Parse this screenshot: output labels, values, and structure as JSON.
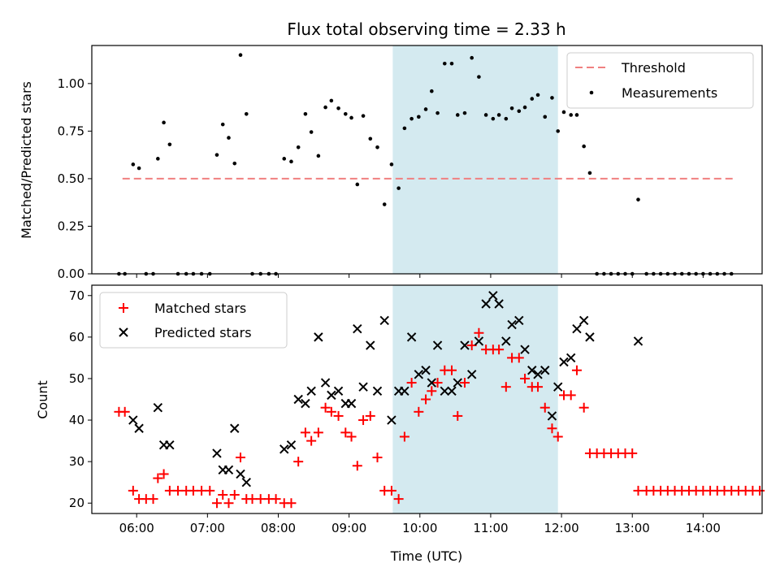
{
  "chart_data": [
    {
      "type": "scatter",
      "title": "Flux total observing time = 2.33 h",
      "ylabel": "Matched/Predicted stars",
      "xlim": [
        "05:22",
        "14:50"
      ],
      "ylim": [
        0,
        1.2
      ],
      "yticks": [
        "0.00",
        "0.25",
        "0.50",
        "0.75",
        "1.00"
      ],
      "legend_position": "top-right",
      "shaded_span": {
        "start": "09:37",
        "end": "11:57",
        "color": "#d4eaf0"
      },
      "threshold": {
        "name": "Threshold",
        "value": 0.5,
        "x_start": "05:48",
        "x_end": "14:25",
        "color": "#f08080"
      },
      "series": [
        {
          "name": "Measurements",
          "marker": "dot",
          "color": "#000000",
          "points": [
            [
              "05:45",
              0.0
            ],
            [
              "05:50",
              0.0
            ],
            [
              "05:57",
              0.575
            ],
            [
              "06:02",
              0.555
            ],
            [
              "06:08",
              0.0
            ],
            [
              "06:14",
              0.0
            ],
            [
              "06:18",
              0.605
            ],
            [
              "06:23",
              0.795
            ],
            [
              "06:28",
              0.68
            ],
            [
              "06:35",
              0.0
            ],
            [
              "06:42",
              0.0
            ],
            [
              "06:48",
              0.0
            ],
            [
              "06:55",
              0.0
            ],
            [
              "07:02",
              0.0
            ],
            [
              "07:08",
              0.625
            ],
            [
              "07:13",
              0.785
            ],
            [
              "07:18",
              0.715
            ],
            [
              "07:23",
              0.58
            ],
            [
              "07:28",
              1.15
            ],
            [
              "07:33",
              0.84
            ],
            [
              "07:38",
              0.0
            ],
            [
              "07:45",
              0.0
            ],
            [
              "07:52",
              0.0
            ],
            [
              "07:58",
              0.0
            ],
            [
              "08:05",
              0.605
            ],
            [
              "08:11",
              0.59
            ],
            [
              "08:17",
              0.665
            ],
            [
              "08:23",
              0.84
            ],
            [
              "08:28",
              0.745
            ],
            [
              "08:34",
              0.62
            ],
            [
              "08:40",
              0.875
            ],
            [
              "08:45",
              0.91
            ],
            [
              "08:51",
              0.87
            ],
            [
              "08:57",
              0.84
            ],
            [
              "09:02",
              0.82
            ],
            [
              "09:07",
              0.47
            ],
            [
              "09:12",
              0.83
            ],
            [
              "09:18",
              0.71
            ],
            [
              "09:24",
              0.665
            ],
            [
              "09:30",
              0.365
            ],
            [
              "09:36",
              0.575
            ],
            [
              "09:42",
              0.45
            ],
            [
              "09:47",
              0.765
            ],
            [
              "09:53",
              0.815
            ],
            [
              "09:59",
              0.825
            ],
            [
              "10:05",
              0.865
            ],
            [
              "10:10",
              0.96
            ],
            [
              "10:15",
              0.845
            ],
            [
              "10:21",
              1.105
            ],
            [
              "10:27",
              1.105
            ],
            [
              "10:32",
              0.835
            ],
            [
              "10:38",
              0.845
            ],
            [
              "10:44",
              1.135
            ],
            [
              "10:50",
              1.035
            ],
            [
              "10:56",
              0.835
            ],
            [
              "11:02",
              0.815
            ],
            [
              "11:07",
              0.835
            ],
            [
              "11:13",
              0.815
            ],
            [
              "11:18",
              0.87
            ],
            [
              "11:24",
              0.855
            ],
            [
              "11:29",
              0.875
            ],
            [
              "11:35",
              0.92
            ],
            [
              "11:40",
              0.94
            ],
            [
              "11:46",
              0.825
            ],
            [
              "11:52",
              0.925
            ],
            [
              "11:57",
              0.75
            ],
            [
              "12:02",
              0.85
            ],
            [
              "12:08",
              0.835
            ],
            [
              "12:13",
              0.835
            ],
            [
              "12:19",
              0.67
            ],
            [
              "12:24",
              0.53
            ],
            [
              "12:30",
              0.0
            ],
            [
              "12:36",
              0.0
            ],
            [
              "12:42",
              0.0
            ],
            [
              "12:48",
              0.0
            ],
            [
              "12:54",
              0.0
            ],
            [
              "13:00",
              0.0
            ],
            [
              "13:05",
              0.39
            ],
            [
              "13:12",
              0.0
            ],
            [
              "13:18",
              0.0
            ],
            [
              "13:24",
              0.0
            ],
            [
              "13:30",
              0.0
            ],
            [
              "13:36",
              0.0
            ],
            [
              "13:42",
              0.0
            ],
            [
              "13:48",
              0.0
            ],
            [
              "13:54",
              0.0
            ],
            [
              "14:00",
              0.0
            ],
            [
              "14:06",
              0.0
            ],
            [
              "14:12",
              0.0
            ],
            [
              "14:18",
              0.0
            ],
            [
              "14:24",
              0.0
            ]
          ]
        }
      ]
    },
    {
      "type": "scatter",
      "xlabel": "Time (UTC)",
      "ylabel": "Count",
      "xlim": [
        "05:22",
        "14:50"
      ],
      "ylim": [
        17.5,
        72.5
      ],
      "xticks": [
        "06:00",
        "07:00",
        "08:00",
        "09:00",
        "10:00",
        "11:00",
        "12:00",
        "13:00",
        "14:00"
      ],
      "yticks": [
        "20",
        "30",
        "40",
        "50",
        "60",
        "70"
      ],
      "legend_position": "top-left",
      "shaded_span": {
        "start": "09:37",
        "end": "11:57",
        "color": "#d4eaf0"
      },
      "series": [
        {
          "name": "Matched stars",
          "marker": "plus",
          "color": "#ff0000",
          "points": [
            [
              "05:45",
              42
            ],
            [
              "05:50",
              42
            ],
            [
              "05:57",
              23
            ],
            [
              "06:02",
              21
            ],
            [
              "06:08",
              21
            ],
            [
              "06:14",
              21
            ],
            [
              "06:18",
              26
            ],
            [
              "06:23",
              27
            ],
            [
              "06:28",
              23
            ],
            [
              "06:35",
              23
            ],
            [
              "06:42",
              23
            ],
            [
              "06:48",
              23
            ],
            [
              "06:55",
              23
            ],
            [
              "07:02",
              23
            ],
            [
              "07:08",
              20
            ],
            [
              "07:13",
              22
            ],
            [
              "07:18",
              20
            ],
            [
              "07:23",
              22
            ],
            [
              "07:28",
              31
            ],
            [
              "07:33",
              21
            ],
            [
              "07:38",
              21
            ],
            [
              "07:45",
              21
            ],
            [
              "07:52",
              21
            ],
            [
              "07:58",
              21
            ],
            [
              "08:05",
              20
            ],
            [
              "08:11",
              20
            ],
            [
              "08:17",
              30
            ],
            [
              "08:23",
              37
            ],
            [
              "08:28",
              35
            ],
            [
              "08:34",
              37
            ],
            [
              "08:40",
              43
            ],
            [
              "08:45",
              42
            ],
            [
              "08:51",
              41
            ],
            [
              "08:57",
              37
            ],
            [
              "09:02",
              36
            ],
            [
              "09:07",
              29
            ],
            [
              "09:12",
              40
            ],
            [
              "09:18",
              41
            ],
            [
              "09:24",
              31
            ],
            [
              "09:30",
              23
            ],
            [
              "09:36",
              23
            ],
            [
              "09:42",
              21
            ],
            [
              "09:47",
              36
            ],
            [
              "09:53",
              49
            ],
            [
              "09:59",
              42
            ],
            [
              "10:05",
              45
            ],
            [
              "10:10",
              47
            ],
            [
              "10:15",
              49
            ],
            [
              "10:21",
              52
            ],
            [
              "10:27",
              52
            ],
            [
              "10:32",
              41
            ],
            [
              "10:38",
              49
            ],
            [
              "10:44",
              58
            ],
            [
              "10:50",
              61
            ],
            [
              "10:56",
              57
            ],
            [
              "11:02",
              57
            ],
            [
              "11:07",
              57
            ],
            [
              "11:13",
              48
            ],
            [
              "11:18",
              55
            ],
            [
              "11:24",
              55
            ],
            [
              "11:29",
              50
            ],
            [
              "11:35",
              48
            ],
            [
              "11:40",
              48
            ],
            [
              "11:46",
              43
            ],
            [
              "11:52",
              38
            ],
            [
              "11:57",
              36
            ],
            [
              "12:02",
              46
            ],
            [
              "12:08",
              46
            ],
            [
              "12:13",
              52
            ],
            [
              "12:19",
              43
            ],
            [
              "12:24",
              32
            ],
            [
              "12:30",
              32
            ],
            [
              "12:36",
              32
            ],
            [
              "12:42",
              32
            ],
            [
              "12:48",
              32
            ],
            [
              "12:54",
              32
            ],
            [
              "13:00",
              32
            ],
            [
              "13:05",
              23
            ],
            [
              "13:12",
              23
            ],
            [
              "13:18",
              23
            ],
            [
              "13:24",
              23
            ],
            [
              "13:30",
              23
            ],
            [
              "13:36",
              23
            ],
            [
              "13:42",
              23
            ],
            [
              "13:48",
              23
            ],
            [
              "13:54",
              23
            ],
            [
              "14:00",
              23
            ],
            [
              "14:06",
              23
            ],
            [
              "14:12",
              23
            ],
            [
              "14:18",
              23
            ],
            [
              "14:24",
              23
            ],
            [
              "14:30",
              23
            ],
            [
              "14:36",
              23
            ],
            [
              "14:42",
              23
            ],
            [
              "14:48",
              23
            ]
          ]
        },
        {
          "name": "Predicted stars",
          "marker": "x",
          "color": "#000000",
          "points": [
            [
              "05:57",
              40
            ],
            [
              "06:02",
              38
            ],
            [
              "06:18",
              43
            ],
            [
              "06:23",
              34
            ],
            [
              "06:28",
              34
            ],
            [
              "07:08",
              32
            ],
            [
              "07:13",
              28
            ],
            [
              "07:18",
              28
            ],
            [
              "07:23",
              38
            ],
            [
              "07:28",
              27
            ],
            [
              "07:33",
              25
            ],
            [
              "08:05",
              33
            ],
            [
              "08:11",
              34
            ],
            [
              "08:17",
              45
            ],
            [
              "08:23",
              44
            ],
            [
              "08:28",
              47
            ],
            [
              "08:34",
              60
            ],
            [
              "08:40",
              49
            ],
            [
              "08:45",
              46
            ],
            [
              "08:51",
              47
            ],
            [
              "08:57",
              44
            ],
            [
              "09:02",
              44
            ],
            [
              "09:07",
              62
            ],
            [
              "09:12",
              48
            ],
            [
              "09:18",
              58
            ],
            [
              "09:24",
              47
            ],
            [
              "09:30",
              64
            ],
            [
              "09:36",
              40
            ],
            [
              "09:42",
              47
            ],
            [
              "09:47",
              47
            ],
            [
              "09:53",
              60
            ],
            [
              "09:59",
              51
            ],
            [
              "10:05",
              52
            ],
            [
              "10:10",
              49
            ],
            [
              "10:15",
              58
            ],
            [
              "10:21",
              47
            ],
            [
              "10:27",
              47
            ],
            [
              "10:32",
              49
            ],
            [
              "10:38",
              58
            ],
            [
              "10:44",
              51
            ],
            [
              "10:50",
              59
            ],
            [
              "10:56",
              68
            ],
            [
              "11:02",
              70
            ],
            [
              "11:07",
              68
            ],
            [
              "11:13",
              59
            ],
            [
              "11:18",
              63
            ],
            [
              "11:24",
              64
            ],
            [
              "11:29",
              57
            ],
            [
              "11:35",
              52
            ],
            [
              "11:40",
              51
            ],
            [
              "11:46",
              52
            ],
            [
              "11:52",
              41
            ],
            [
              "11:57",
              48
            ],
            [
              "12:02",
              54
            ],
            [
              "12:08",
              55
            ],
            [
              "12:13",
              62
            ],
            [
              "12:19",
              64
            ],
            [
              "12:24",
              60
            ],
            [
              "13:05",
              59
            ]
          ]
        }
      ]
    }
  ]
}
